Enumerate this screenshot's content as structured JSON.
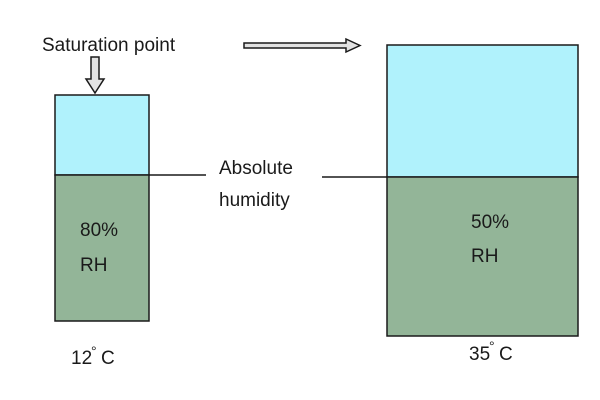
{
  "labels": {
    "saturation_point": "Saturation point",
    "absolute_humidity_line1": "Absolute",
    "absolute_humidity_line2": "humidity"
  },
  "containers": [
    {
      "id": "cold",
      "rh_percent": "80%",
      "rh_unit": "RH",
      "temperature_value": "12",
      "temperature_unit": "C",
      "degree_symbol": "°"
    },
    {
      "id": "warm",
      "rh_percent": "50%",
      "rh_unit": "RH",
      "temperature_value": "35",
      "temperature_unit": "C",
      "degree_symbol": "°"
    }
  ],
  "colors": {
    "air_capacity": "#b0f2fc",
    "water_vapour": "#93b598",
    "outline": "#1a1a1a",
    "arrow_fill": "#e2e2e2"
  },
  "icons": {
    "down_arrow": "down-arrow-icon",
    "right_arrow": "right-arrow-icon"
  }
}
